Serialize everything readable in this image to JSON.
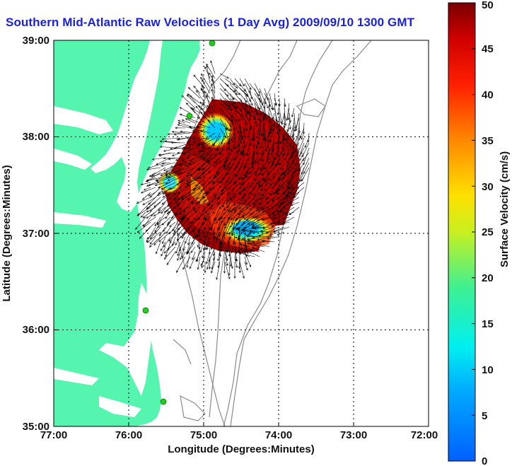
{
  "title": "Southern Mid-Atlantic Raw Velocities (1 Day Avg) 2009/09/10 1300 GMT",
  "x_axis": {
    "label": "Longitude (Degrees:Minutes)",
    "ticks": [
      "77:00",
      "76:00",
      "75:00",
      "74:00",
      "73:00",
      "72:00"
    ]
  },
  "y_axis": {
    "label": "Latitude (Degrees:Minutes)",
    "ticks": [
      "39:00",
      "38:00",
      "37:00",
      "36:00",
      "35:00"
    ]
  },
  "colorbar": {
    "label": "Surface Velocity (cm/s)",
    "ticks": [
      "50",
      "45",
      "40",
      "35",
      "30",
      "25",
      "20",
      "15",
      "10",
      "5",
      "0"
    ],
    "range": [
      0,
      50
    ]
  },
  "colors": {
    "land": "#55f5b0",
    "water": "#ffffff",
    "bathymetry": "#8a8a8a",
    "title": "#1a22d8",
    "station": "#22cc22"
  },
  "stations": [
    {
      "lon": "74:50",
      "lat": "38:58"
    },
    {
      "lon": "75:10",
      "lat": "38:15"
    },
    {
      "lon": "75:40",
      "lat": "36:11"
    },
    {
      "lon": "75:30",
      "lat": "35:15"
    }
  ],
  "icons": [
    "north-arrow-vectors",
    "station-marker-icon"
  ]
}
